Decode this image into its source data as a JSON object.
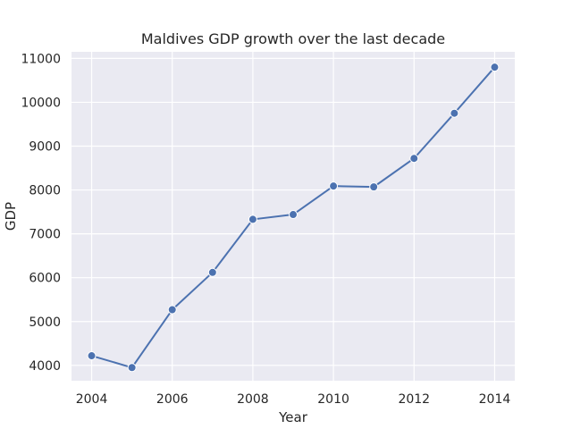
{
  "chart_data": {
    "type": "line",
    "title": "Maldives GDP growth over the last decade",
    "xlabel": "Year",
    "ylabel": "GDP",
    "x": [
      2004,
      2005,
      2006,
      2007,
      2008,
      2009,
      2010,
      2011,
      2012,
      2013,
      2014
    ],
    "series": [
      {
        "values": [
          4220,
          3950,
          5270,
          6120,
          7330,
          7440,
          8090,
          8070,
          8720,
          9750,
          10800
        ]
      }
    ],
    "xticks": [
      2004,
      2006,
      2008,
      2010,
      2012,
      2014
    ],
    "yticks": [
      4000,
      5000,
      6000,
      7000,
      8000,
      9000,
      10000,
      11000
    ],
    "xlim": [
      2003.5,
      2014.5
    ],
    "ylim": [
      3650,
      11150
    ],
    "grid": true,
    "colors": {
      "background": "#eaeaf2",
      "grid": "#ffffff",
      "line": "#4c72b0",
      "text": "#262626"
    }
  }
}
